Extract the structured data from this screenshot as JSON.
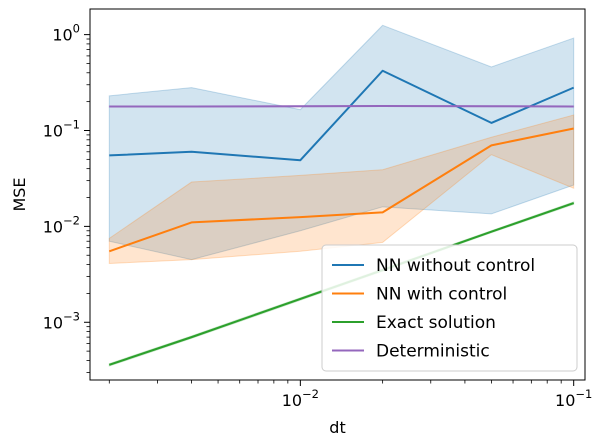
{
  "chart_data": {
    "type": "line",
    "xlabel": "dt",
    "ylabel": "MSE",
    "xscale": "log",
    "yscale": "log",
    "xlim": [
      0.0017,
      0.11
    ],
    "ylim": [
      0.00025,
      1.85
    ],
    "x": [
      0.002,
      0.004,
      0.01,
      0.02,
      0.05,
      0.1
    ],
    "x_ticks": [
      {
        "value": 0.01,
        "base": "10",
        "exp": "−2"
      },
      {
        "value": 0.1,
        "base": "10",
        "exp": "−1"
      }
    ],
    "y_ticks": [
      {
        "value": 0.001,
        "base": "10",
        "exp": "−3"
      },
      {
        "value": 0.01,
        "base": "10",
        "exp": "−2"
      },
      {
        "value": 0.1,
        "base": "10",
        "exp": "−1"
      },
      {
        "value": 1,
        "base": "10",
        "exp": "0"
      }
    ],
    "legend_position": "lower-right",
    "series": [
      {
        "name": "NN without control",
        "color": "#1f77b4",
        "values": [
          0.055,
          0.06,
          0.049,
          0.42,
          0.12,
          0.28
        ],
        "band_low": [
          0.007,
          0.0045,
          0.009,
          0.016,
          0.0135,
          0.027
        ],
        "band_high": [
          0.23,
          0.28,
          0.165,
          1.25,
          0.46,
          0.92
        ]
      },
      {
        "name": "NN with control",
        "color": "#ff7f0e",
        "values": [
          0.0055,
          0.011,
          0.0125,
          0.014,
          0.07,
          0.105
        ],
        "band_low": [
          0.0041,
          0.0045,
          0.0055,
          0.0068,
          0.056,
          0.025
        ],
        "band_high": [
          0.0075,
          0.029,
          0.034,
          0.039,
          0.085,
          0.145
        ]
      },
      {
        "name": "Exact solution",
        "color": "#2ca02c",
        "values": [
          0.00036,
          0.0007,
          0.00175,
          0.0035,
          0.0088,
          0.0175
        ],
        "band_low": [
          0.00035,
          0.00068,
          0.0017,
          0.0034,
          0.0086,
          0.017
        ],
        "band_high": [
          0.00037,
          0.00072,
          0.0018,
          0.0036,
          0.009,
          0.018
        ]
      },
      {
        "name": "Deterministic",
        "color": "#9467bd",
        "values": [
          0.178,
          0.178,
          0.179,
          0.18,
          0.179,
          0.178
        ],
        "band_low": [
          0.176,
          0.176,
          0.177,
          0.178,
          0.177,
          0.176
        ],
        "band_high": [
          0.18,
          0.18,
          0.181,
          0.182,
          0.181,
          0.18
        ]
      }
    ]
  }
}
